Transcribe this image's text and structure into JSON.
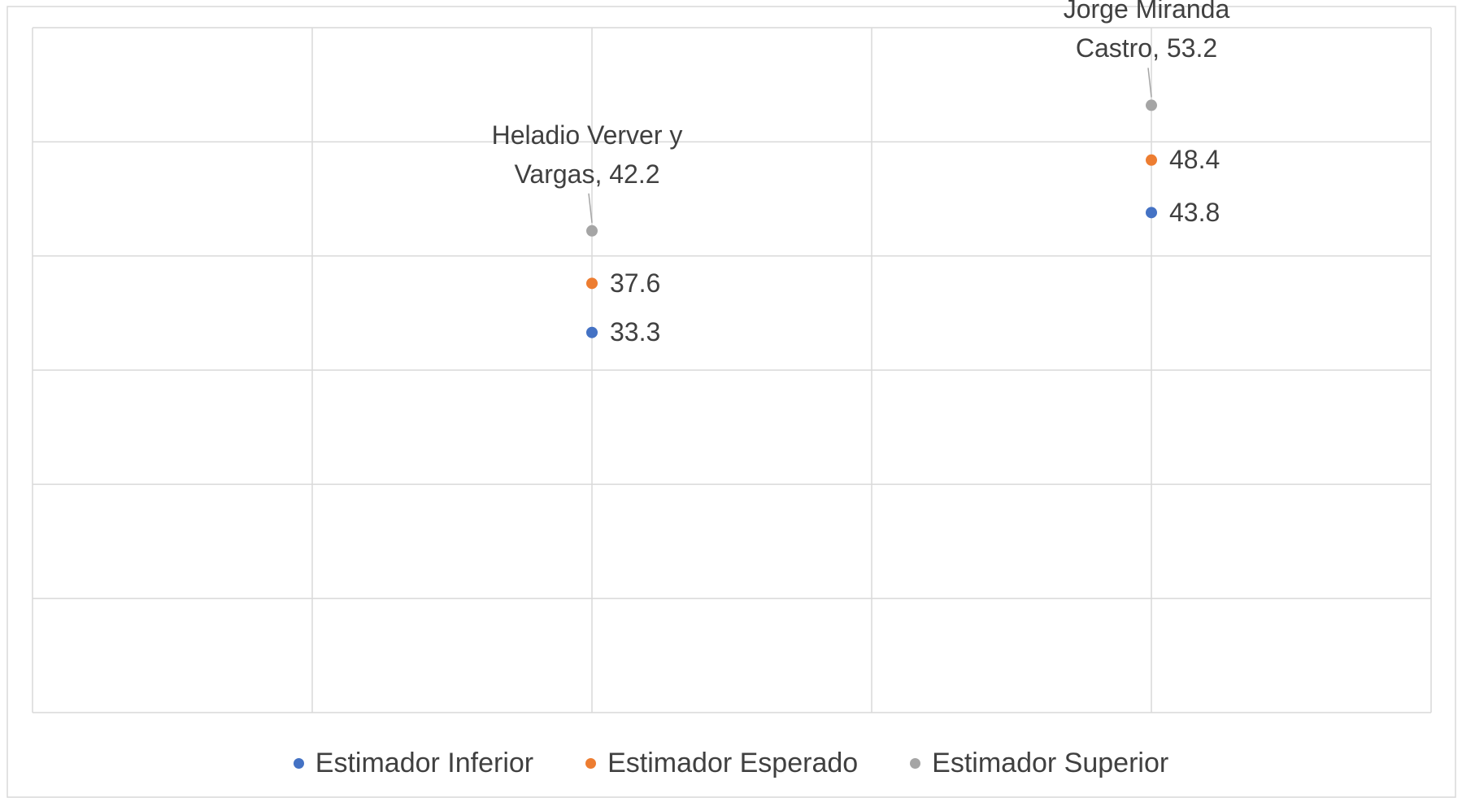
{
  "chart_data": {
    "type": "scatter",
    "x": [
      1,
      2
    ],
    "xlim": [
      0,
      2.5
    ],
    "xticks": [
      0,
      0.5,
      1,
      1.5,
      2,
      2.5
    ],
    "ylim": [
      0,
      60
    ],
    "yticks": [
      0,
      10,
      20,
      30,
      40,
      50,
      60
    ],
    "grid": true,
    "legend": "bottom",
    "series": [
      {
        "name": "Estimador Inferior",
        "color": "#4472c4",
        "values": [
          33.3,
          43.8
        ]
      },
      {
        "name": "Estimador Esperado",
        "color": "#ed7d31",
        "values": [
          37.6,
          48.4
        ]
      },
      {
        "name": "Estimador Superior",
        "color": "#a5a5a5",
        "values": [
          42.2,
          53.2
        ],
        "value_labels": [
          "Heladio Verver y Vargas, 42.2",
          "Jorge Miranda Castro, 53.2"
        ]
      }
    ]
  }
}
